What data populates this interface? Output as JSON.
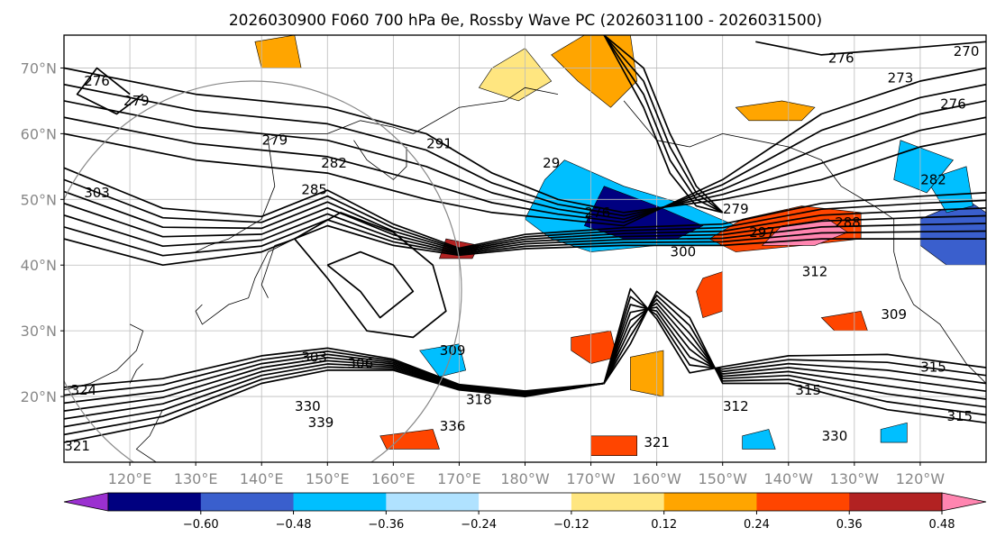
{
  "chart_data": {
    "type": "contour-map",
    "title": "2026030900 F060 700 hPa θe, Rossby Wave PC (2026031100 - 2026031500)",
    "map": {
      "lon_range": [
        110,
        250
      ],
      "lat_range": [
        10,
        75
      ],
      "x_ticks": [
        {
          "lon": 120,
          "label": "120°E"
        },
        {
          "lon": 130,
          "label": "130°E"
        },
        {
          "lon": 140,
          "label": "140°E"
        },
        {
          "lon": 150,
          "label": "150°E"
        },
        {
          "lon": 160,
          "label": "160°E"
        },
        {
          "lon": 170,
          "label": "170°E"
        },
        {
          "lon": 180,
          "label": "180°W"
        },
        {
          "lon": 190,
          "label": "170°W"
        },
        {
          "lon": 200,
          "label": "160°W"
        },
        {
          "lon": 210,
          "label": "150°W"
        },
        {
          "lon": 220,
          "label": "140°W"
        },
        {
          "lon": 230,
          "label": "130°W"
        },
        {
          "lon": 240,
          "label": "120°W"
        }
      ],
      "y_ticks": [
        {
          "lat": 20,
          "label": "20°N"
        },
        {
          "lat": 30,
          "label": "30°N"
        },
        {
          "lat": 40,
          "label": "40°N"
        },
        {
          "lat": 50,
          "label": "50°N"
        },
        {
          "lat": 60,
          "label": "60°N"
        },
        {
          "lat": 70,
          "label": "70°N"
        }
      ],
      "grid": true
    },
    "contour_labels": [
      {
        "lon": 115,
        "lat": 68,
        "label": "276"
      },
      {
        "lon": 121,
        "lat": 65,
        "label": "279"
      },
      {
        "lon": 115,
        "lat": 51,
        "label": "303"
      },
      {
        "lon": 142,
        "lat": 59,
        "label": "279"
      },
      {
        "lon": 151,
        "lat": 55.5,
        "label": "282"
      },
      {
        "lon": 148,
        "lat": 51.5,
        "label": "285"
      },
      {
        "lon": 167,
        "lat": 58.5,
        "label": "291"
      },
      {
        "lon": 184,
        "lat": 55.5,
        "label": "29"
      },
      {
        "lon": 191,
        "lat": 48,
        "label": "276"
      },
      {
        "lon": 212,
        "lat": 48.5,
        "label": "279"
      },
      {
        "lon": 216,
        "lat": 45,
        "label": "297"
      },
      {
        "lon": 229,
        "lat": 46.5,
        "label": "288"
      },
      {
        "lon": 204,
        "lat": 42,
        "label": "300"
      },
      {
        "lon": 224,
        "lat": 39,
        "label": "312"
      },
      {
        "lon": 228,
        "lat": 71.5,
        "label": "276"
      },
      {
        "lon": 237,
        "lat": 68.5,
        "label": "273"
      },
      {
        "lon": 242,
        "lat": 53,
        "label": "282"
      },
      {
        "lon": 247,
        "lat": 72.5,
        "label": "270"
      },
      {
        "lon": 245,
        "lat": 64.5,
        "label": "276"
      },
      {
        "lon": 236,
        "lat": 32.5,
        "label": "309"
      },
      {
        "lon": 242,
        "lat": 24.5,
        "label": "315"
      },
      {
        "lon": 246,
        "lat": 17,
        "label": "315"
      },
      {
        "lon": 223,
        "lat": 21,
        "label": "315"
      },
      {
        "lon": 212,
        "lat": 18.5,
        "label": "312"
      },
      {
        "lon": 227,
        "lat": 14,
        "label": "330"
      },
      {
        "lon": 148,
        "lat": 26,
        "label": "303"
      },
      {
        "lon": 155,
        "lat": 25,
        "label": "306"
      },
      {
        "lon": 169,
        "lat": 27,
        "label": "309"
      },
      {
        "lon": 173,
        "lat": 19.5,
        "label": "318"
      },
      {
        "lon": 147,
        "lat": 18.5,
        "label": "330"
      },
      {
        "lon": 149,
        "lat": 16,
        "label": "339"
      },
      {
        "lon": 169,
        "lat": 15.5,
        "label": "336"
      },
      {
        "lon": 113,
        "lat": 21,
        "label": "324"
      },
      {
        "lon": 112,
        "lat": 12.5,
        "label": "321"
      },
      {
        "lon": 200,
        "lat": 13,
        "label": "321"
      }
    ],
    "colorbar": {
      "ticks": [
        -0.6,
        -0.48,
        -0.36,
        -0.24,
        -0.12,
        0.12,
        0.24,
        0.36,
        0.48,
        0.6
      ],
      "tick_labels": [
        "−0.60",
        "−0.48",
        "−0.36",
        "−0.24",
        "−0.12",
        "0.12",
        "0.24",
        "0.36",
        "0.48",
        "0.60"
      ],
      "colors": [
        "#9b30d0",
        "#000080",
        "#3a5fcd",
        "#00bfff",
        "#b0e2ff",
        "#ffffff",
        "#ffe680",
        "#ffa500",
        "#ff4500",
        "#b22222",
        "#ff85b0"
      ],
      "extend": "both"
    }
  }
}
